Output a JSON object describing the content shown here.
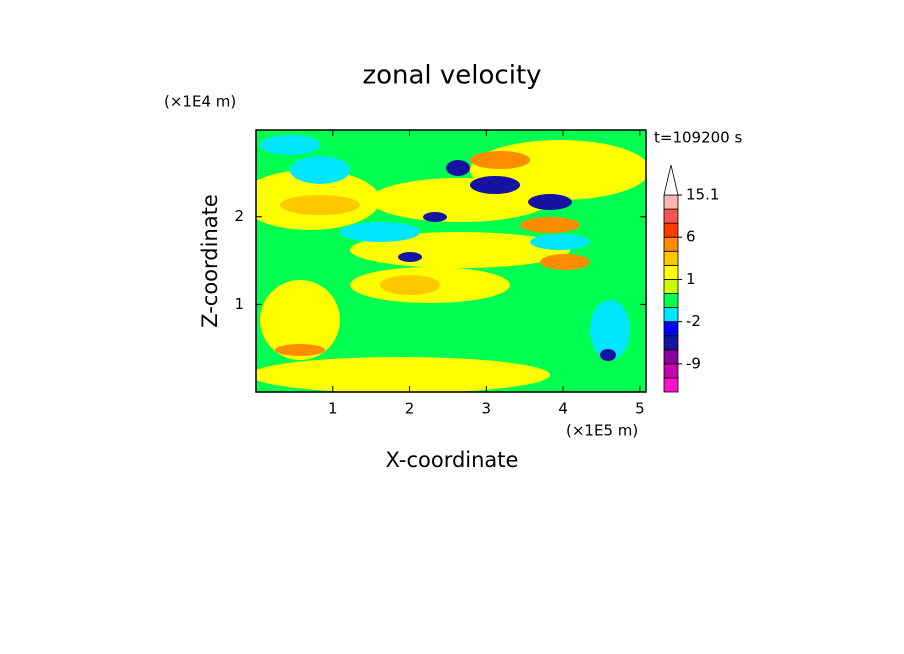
{
  "chart_data": {
    "type": "contour",
    "title": "zonal velocity",
    "xlabel": "X-coordinate",
    "ylabel": "Z-coordinate",
    "x_unit": "(×1E5 m)",
    "y_unit": "(×1E4 m)",
    "time_label": "t=109200 s",
    "xlim": [
      0,
      5.08
    ],
    "ylim": [
      0,
      2.99
    ],
    "xticks": [
      1,
      2,
      3,
      4,
      5
    ],
    "yticks": [
      1,
      2
    ],
    "colorbar": {
      "levels": [
        -15,
        -12,
        -9,
        -6,
        -4,
        -2,
        -1,
        0,
        1,
        2,
        4,
        6,
        9,
        12,
        15.1
      ],
      "colors": [
        "#ff10c8",
        "#c800b4",
        "#8c00a0",
        "#1414a0",
        "#0000ff",
        "#00e6ff",
        "#00ff50",
        "#c8ff00",
        "#ffff00",
        "#ffc800",
        "#ff8c00",
        "#ff3c00",
        "#ff5050",
        "#ffb4b4"
      ],
      "extend_color": "#ffffff",
      "ticks": [
        15.1,
        6,
        1,
        -2,
        -9
      ]
    }
  }
}
